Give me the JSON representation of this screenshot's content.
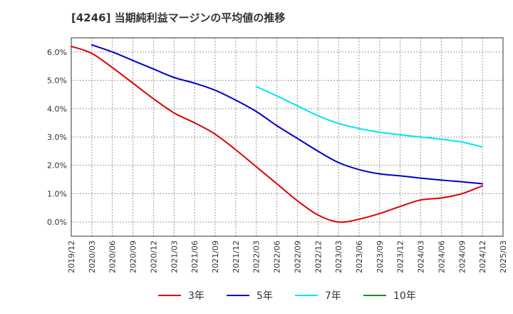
{
  "chart_data": {
    "type": "line",
    "title": "[4246]  当期純利益マージンの平均値の推移",
    "xlabel": "",
    "ylabel": "",
    "ylim": [
      -0.5,
      6.5
    ],
    "grid": true,
    "legend_placement": "bottom",
    "x_ticks": [
      "2019/12",
      "2020/03",
      "2020/06",
      "2020/09",
      "2020/12",
      "2021/03",
      "2021/06",
      "2021/09",
      "2021/12",
      "2022/03",
      "2022/06",
      "2022/09",
      "2022/12",
      "2023/03",
      "2023/06",
      "2023/09",
      "2023/12",
      "2024/03",
      "2024/06",
      "2024/09",
      "2024/12",
      "2025/03"
    ],
    "y_ticks": [
      "0.0%",
      "1.0%",
      "2.0%",
      "3.0%",
      "4.0%",
      "5.0%",
      "6.0%"
    ],
    "series": [
      {
        "name": "3年",
        "color": "#dd0000",
        "points": [
          [
            "2019/12",
            6.2
          ],
          [
            "2020/03",
            5.95
          ],
          [
            "2020/06",
            5.45
          ],
          [
            "2020/09",
            4.9
          ],
          [
            "2020/12",
            4.35
          ],
          [
            "2021/03",
            3.85
          ],
          [
            "2021/06",
            3.5
          ],
          [
            "2021/09",
            3.1
          ],
          [
            "2021/12",
            2.55
          ],
          [
            "2022/03",
            1.95
          ],
          [
            "2022/06",
            1.35
          ],
          [
            "2022/09",
            0.75
          ],
          [
            "2022/12",
            0.25
          ],
          [
            "2023/03",
            0.0
          ],
          [
            "2023/06",
            0.1
          ],
          [
            "2023/09",
            0.3
          ],
          [
            "2023/12",
            0.55
          ],
          [
            "2024/03",
            0.78
          ],
          [
            "2024/06",
            0.85
          ],
          [
            "2024/09",
            1.0
          ],
          [
            "2024/12",
            1.28
          ]
        ]
      },
      {
        "name": "5年",
        "color": "#0000cc",
        "points": [
          [
            "2020/03",
            6.25
          ],
          [
            "2020/06",
            6.0
          ],
          [
            "2020/09",
            5.7
          ],
          [
            "2020/12",
            5.4
          ],
          [
            "2021/03",
            5.1
          ],
          [
            "2021/06",
            4.9
          ],
          [
            "2021/09",
            4.65
          ],
          [
            "2021/12",
            4.3
          ],
          [
            "2022/03",
            3.9
          ],
          [
            "2022/06",
            3.4
          ],
          [
            "2022/09",
            2.95
          ],
          [
            "2022/12",
            2.5
          ],
          [
            "2023/03",
            2.1
          ],
          [
            "2023/06",
            1.85
          ],
          [
            "2023/09",
            1.7
          ],
          [
            "2023/12",
            1.63
          ],
          [
            "2024/03",
            1.55
          ],
          [
            "2024/06",
            1.48
          ],
          [
            "2024/09",
            1.42
          ],
          [
            "2024/12",
            1.35
          ]
        ]
      },
      {
        "name": "7年",
        "color": "#00e5ee",
        "points": [
          [
            "2022/03",
            4.78
          ],
          [
            "2022/06",
            4.45
          ],
          [
            "2022/09",
            4.1
          ],
          [
            "2022/12",
            3.75
          ],
          [
            "2023/03",
            3.48
          ],
          [
            "2023/06",
            3.3
          ],
          [
            "2023/09",
            3.17
          ],
          [
            "2023/12",
            3.08
          ],
          [
            "2024/03",
            3.0
          ],
          [
            "2024/06",
            2.92
          ],
          [
            "2024/09",
            2.82
          ],
          [
            "2024/12",
            2.65
          ]
        ]
      },
      {
        "name": "10年",
        "color": "#228b22",
        "points": []
      }
    ]
  }
}
